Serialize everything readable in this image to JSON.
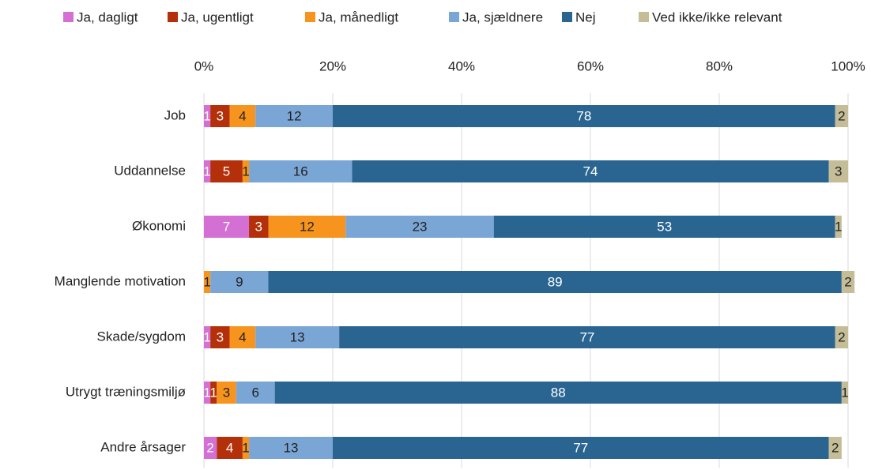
{
  "chart_data": {
    "type": "stacked-bar-horizontal",
    "categories": [
      "Job",
      "Uddannelse",
      "Økonomi",
      "Manglende motivation",
      "Skade/sygdom",
      "Utrygt træningsmiljø",
      "Andre årsager"
    ],
    "series": [
      {
        "name": "Ja, dagligt",
        "color": "#d46fd4",
        "label_color": "#ffffff",
        "values": [
          1,
          1,
          7,
          0,
          1,
          1,
          2
        ]
      },
      {
        "name": "Ja, ugentligt",
        "color": "#b3300a",
        "label_color": "#ffffff",
        "values": [
          3,
          5,
          3,
          0,
          3,
          1,
          4
        ]
      },
      {
        "name": "Ja, månedligt",
        "color": "#f7941d",
        "label_color": "#222222",
        "values": [
          4,
          1,
          12,
          1,
          4,
          3,
          1
        ]
      },
      {
        "name": "Ja, sjældnere",
        "color": "#7aa6d6",
        "label_color": "#222222",
        "values": [
          12,
          16,
          23,
          9,
          13,
          6,
          13
        ]
      },
      {
        "name": "Nej",
        "color": "#2a6592",
        "label_color": "#ffffff",
        "values": [
          78,
          74,
          53,
          89,
          77,
          88,
          77
        ]
      },
      {
        "name": "Ved ikke/ikke relevant",
        "color": "#c4bd97",
        "label_color": "#222222",
        "values": [
          2,
          3,
          1,
          2,
          2,
          1,
          2
        ]
      }
    ],
    "xlim": [
      0,
      100
    ],
    "xticks": [
      {
        "value": 0,
        "label": "0%"
      },
      {
        "value": 20,
        "label": "20%"
      },
      {
        "value": 40,
        "label": "40%"
      },
      {
        "value": 60,
        "label": "60%"
      },
      {
        "value": 80,
        "label": "80%"
      },
      {
        "value": 100,
        "label": "100%"
      }
    ],
    "grid": true,
    "legend": "top"
  }
}
